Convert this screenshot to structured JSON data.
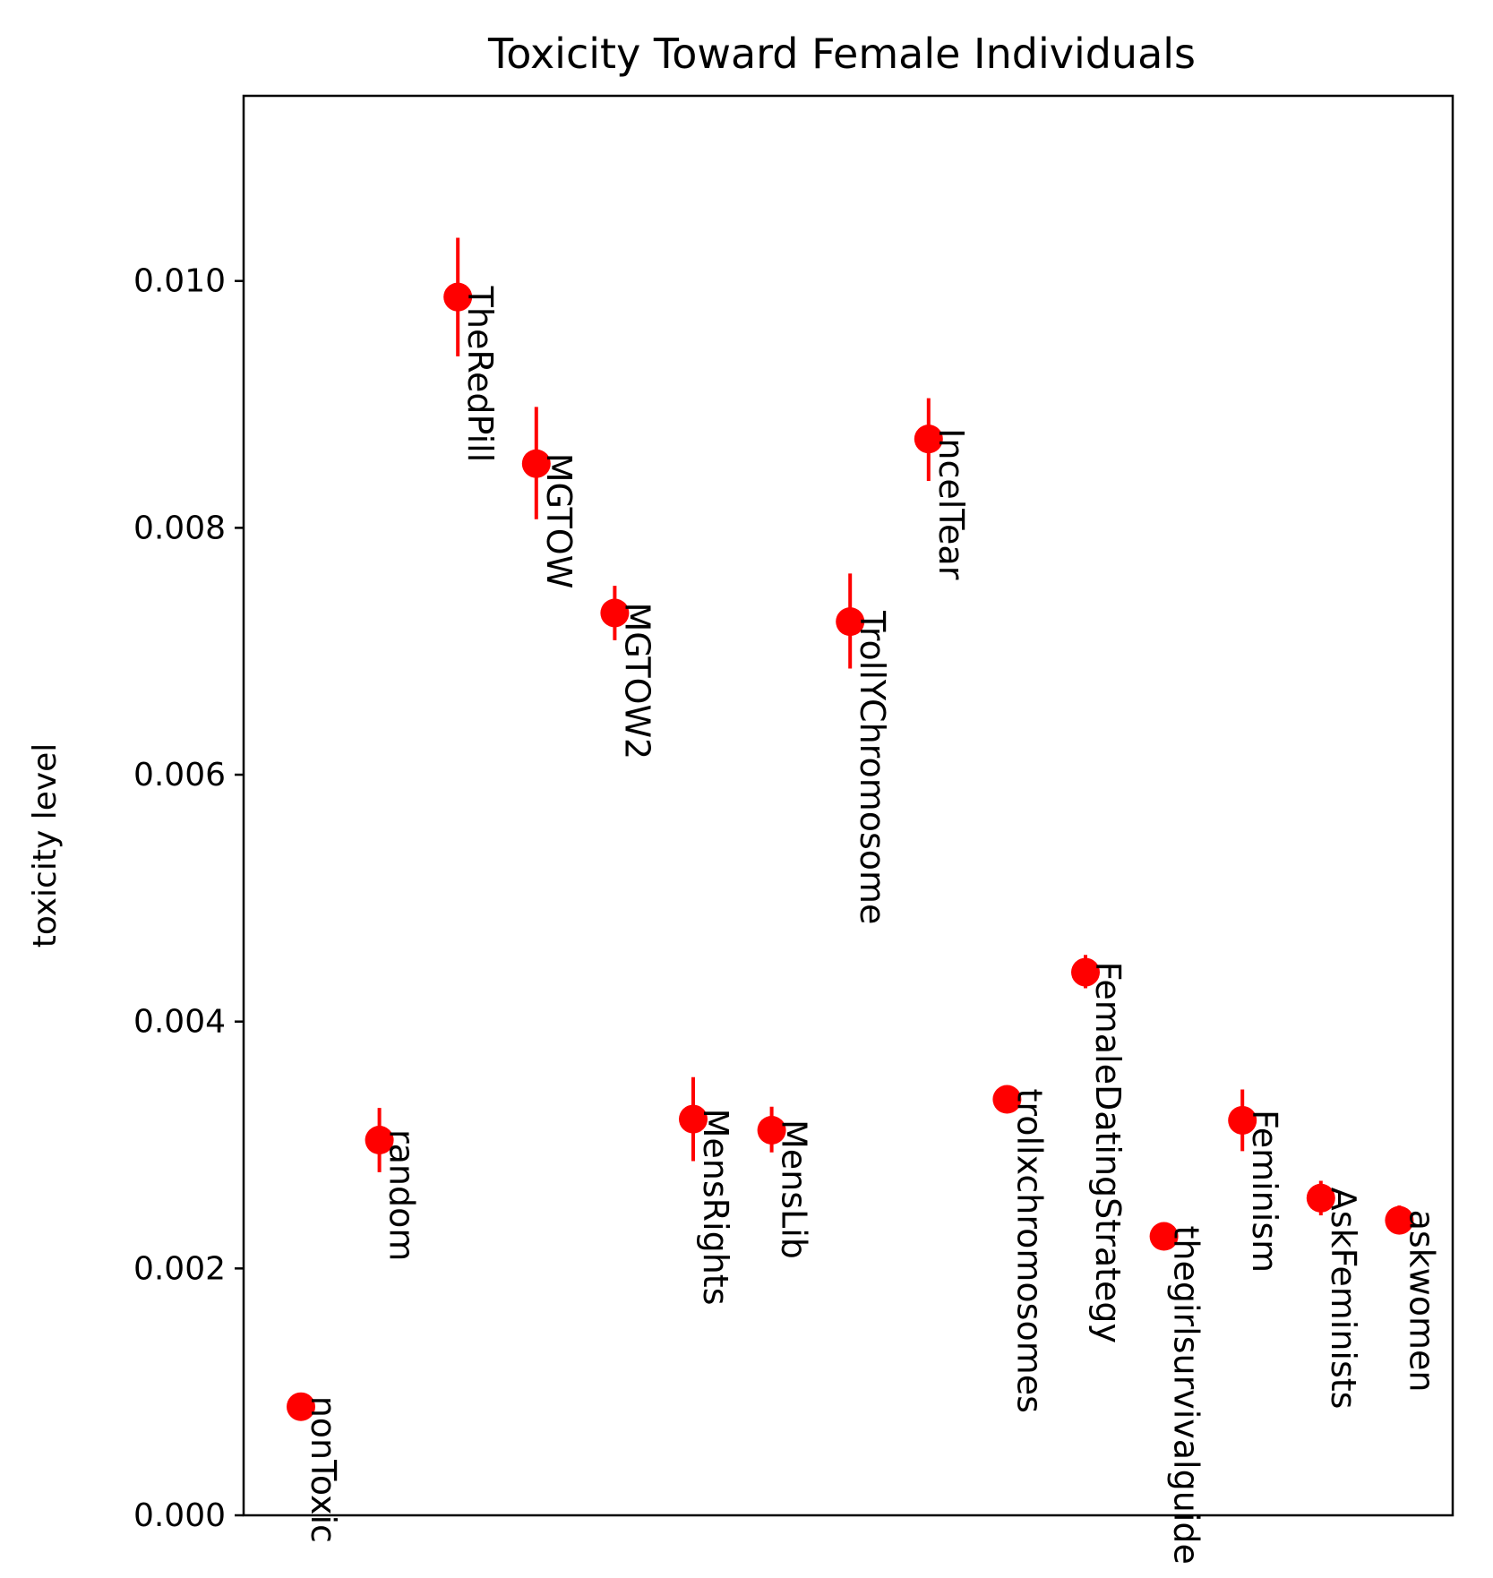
{
  "chart_data": {
    "type": "scatter",
    "title": "Toxicity Toward Female Individuals",
    "xlabel": "",
    "ylabel": "toxicity level",
    "ylim": [
      0,
      0.0115
    ],
    "yticks": [
      0.0,
      0.002,
      0.004,
      0.006,
      0.008,
      0.01
    ],
    "ytick_labels": [
      "0.000",
      "0.002",
      "0.004",
      "0.006",
      "0.008",
      "0.010"
    ],
    "grid": false,
    "legend": "none",
    "colors": {
      "marker": "#ff0000",
      "errorbar": "#ff0000",
      "text": "#000000",
      "axes": "#000000"
    },
    "points": [
      {
        "label": "nonToxic",
        "y": 0.00088,
        "yerr_low": 0.00088,
        "yerr_high": 0.00088
      },
      {
        "label": "random",
        "y": 0.00304,
        "yerr_low": 0.00278,
        "yerr_high": 0.0033
      },
      {
        "label": "TheRedPill",
        "y": 0.00987,
        "yerr_low": 0.00939,
        "yerr_high": 0.01035
      },
      {
        "label": "MGTOW",
        "y": 0.00852,
        "yerr_low": 0.00807,
        "yerr_high": 0.00898
      },
      {
        "label": "MGTOW2",
        "y": 0.00731,
        "yerr_low": 0.00709,
        "yerr_high": 0.00753
      },
      {
        "label": "MensRights",
        "y": 0.00321,
        "yerr_low": 0.00287,
        "yerr_high": 0.00355
      },
      {
        "label": "MensLib",
        "y": 0.00312,
        "yerr_low": 0.00294,
        "yerr_high": 0.00331
      },
      {
        "label": "TrollYChromosome",
        "y": 0.00724,
        "yerr_low": 0.00686,
        "yerr_high": 0.00763
      },
      {
        "label": "IncelTear",
        "y": 0.00872,
        "yerr_low": 0.00838,
        "yerr_high": 0.00905
      },
      {
        "label": "trollxchromosomes",
        "y": 0.00337,
        "yerr_low": 0.00337,
        "yerr_high": 0.00337
      },
      {
        "label": "FemaleDatingStrategy",
        "y": 0.0044,
        "yerr_low": 0.00427,
        "yerr_high": 0.00454
      },
      {
        "label": "thegirlsurvivalguide",
        "y": 0.00226,
        "yerr_low": 0.00226,
        "yerr_high": 0.00226
      },
      {
        "label": "Feminism",
        "y": 0.0032,
        "yerr_low": 0.00295,
        "yerr_high": 0.00345
      },
      {
        "label": "AskFeminists",
        "y": 0.00257,
        "yerr_low": 0.00243,
        "yerr_high": 0.00271
      },
      {
        "label": "askwomen",
        "y": 0.00239,
        "yerr_low": 0.00228,
        "yerr_high": 0.00251
      }
    ]
  }
}
